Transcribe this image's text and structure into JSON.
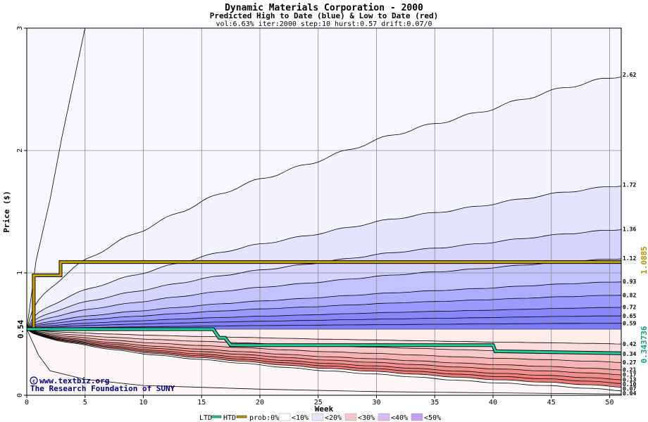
{
  "chart_data": {
    "type": "area",
    "title": "Dynamic Materials Corporation - 2000",
    "subtitle": "Predicted High to Date (blue) &  Low to Date (red)",
    "params": "vol:6.63% iter:2000 step:10 hurst:0.57 drift:0.07/0",
    "xlabel": "Week",
    "ylabel": "Price ($)",
    "xlim": [
      0,
      51
    ],
    "ylim": [
      0,
      3
    ],
    "x_ticks": [
      0,
      5,
      10,
      15,
      20,
      25,
      30,
      35,
      40,
      45,
      50
    ],
    "y_ticks": [
      0,
      1,
      2,
      3
    ],
    "start_price_label": "0.54",
    "start_price": 0.54,
    "htd_end_label": "1.0885",
    "ltd_end_label": "0.343736",
    "high_quantiles": [
      {
        "end": 2.62,
        "label": "2.62"
      },
      {
        "end": 1.72,
        "label": "1.72"
      },
      {
        "end": 1.36,
        "label": "1.36"
      },
      {
        "end": 1.12,
        "label": "1.12"
      },
      {
        "end": 0.93,
        "label": "0.93"
      },
      {
        "end": 0.82,
        "label": "0.82"
      },
      {
        "end": 0.72,
        "label": "0.72"
      },
      {
        "end": 0.65,
        "label": "0.65"
      },
      {
        "end": 0.59,
        "label": "0.59"
      }
    ],
    "low_quantiles": [
      {
        "end": 0.42,
        "label": "0.42"
      },
      {
        "end": 0.34,
        "label": "0.34"
      },
      {
        "end": 0.27,
        "label": "0.27"
      },
      {
        "end": 0.21,
        "label": "0.21"
      },
      {
        "end": 0.17,
        "label": "0.17"
      },
      {
        "end": 0.13,
        "label": "0.13"
      },
      {
        "end": 0.1,
        "label": "0.10"
      },
      {
        "end": 0.07,
        "label": "0.07"
      },
      {
        "end": 0.04,
        "label": "0.04"
      }
    ],
    "extreme_high_line": {
      "x": [
        0,
        0.8,
        2,
        3,
        4,
        5
      ],
      "y": [
        0.54,
        1.1,
        1.6,
        2.1,
        2.55,
        3.0
      ]
    },
    "extreme_low_line": {
      "x": [
        0,
        1,
        2,
        5,
        10,
        20,
        30,
        40,
        51
      ],
      "y": [
        0.54,
        0.33,
        0.2,
        0.13,
        0.08,
        0.05,
        0.03,
        0.02,
        0.01
      ]
    },
    "htd_series": {
      "name": "HTD",
      "x": [
        0,
        0.6,
        0.6,
        2.9,
        2.9,
        51
      ],
      "y": [
        0.54,
        0.54,
        0.98,
        0.98,
        1.0885,
        1.0885
      ]
    },
    "ltd_series": {
      "name": "LTD",
      "x": [
        0,
        16,
        16.5,
        17,
        17.5,
        40,
        40.2,
        51
      ],
      "y": [
        0.54,
        0.54,
        0.47,
        0.47,
        0.41,
        0.41,
        0.36,
        0.343736
      ]
    },
    "band_colors": {
      "high": [
        "#f4f4ff",
        "#e4e4ff",
        "#d4d4ff",
        "#c2c2ff",
        "#adadff",
        "#9a9aff",
        "#8888fc",
        "#8282f8",
        "#7a7af6"
      ],
      "low": [
        "#fcecec",
        "#fbdcdc",
        "#f9c8c8",
        "#f7b4b4",
        "#f5a2a2",
        "#f29090",
        "#f08282",
        "#ee7a7a",
        "#fdf6f6"
      ],
      "above": "#f8f8ff",
      "htd": "#c8a000",
      "ltd": "#20d0a0"
    }
  },
  "credits": {
    "site": "www.textbiz.org",
    "org": "The Research Foundation of SUNY"
  },
  "legend": {
    "ltd": "LTD",
    "htd": "HTD",
    "prob": "prob:0%",
    "p10": "<10%",
    "p20": "<20%",
    "p30": "<30%",
    "p40": "<40%",
    "p50": "<50%"
  }
}
